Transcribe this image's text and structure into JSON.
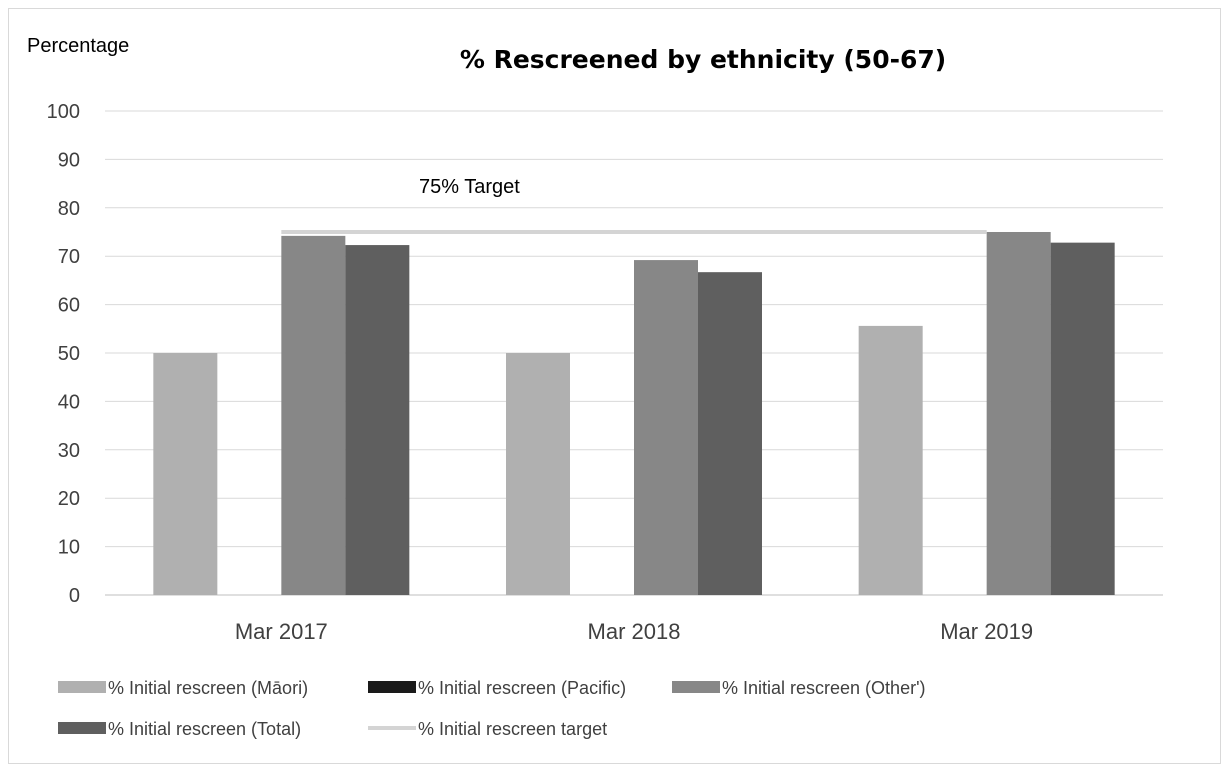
{
  "chart_data": {
    "type": "bar",
    "title": "% Rescreened by ethnicity (50-67)",
    "ylabel": "Percentage",
    "xlabel": "",
    "ylim": [
      0,
      100
    ],
    "yticks": [
      0,
      10,
      20,
      30,
      40,
      50,
      60,
      70,
      80,
      90,
      100
    ],
    "grid": true,
    "categories": [
      "Mar 2017",
      "Mar 2018",
      "Mar 2019"
    ],
    "series": [
      {
        "name": "% Initial rescreen (Māori)",
        "values": [
          50,
          50,
          55.6
        ],
        "color": "#b0b0b0"
      },
      {
        "name": "% Initial rescreen (Pacific)",
        "values": [
          0,
          0,
          0
        ],
        "color": "#1a1a1a"
      },
      {
        "name": "% Initial rescreen (Other')",
        "values": [
          74.2,
          69.2,
          75
        ],
        "color": "#878787"
      },
      {
        "name": "% Initial rescreen (Total)",
        "values": [
          72.3,
          66.7,
          72.8
        ],
        "color": "#5f5f5f"
      }
    ],
    "target": {
      "name": "% Initial rescreen target",
      "value": 75,
      "color": "#d4d4d4"
    },
    "annotations": [
      "75% Target"
    ],
    "legend_position": "bottom"
  }
}
